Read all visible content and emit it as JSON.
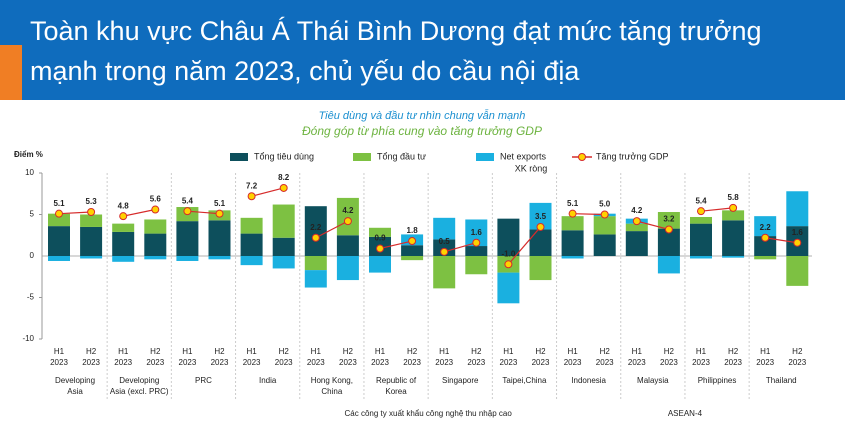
{
  "header": {
    "title": [
      "Toàn khu vực Châu Á Thái Bình Dương đạt mức tăng trưởng",
      "mạnh trong năm 2023, chủ yếu do cầu nội địa"
    ]
  },
  "chart_data": {
    "type": "bar",
    "stacked": true,
    "subtitle": "Tiêu dùng và đầu tư nhìn chung vẫn mạnh",
    "title": "Đóng góp từ phía cung vào tăng trưởng GDP",
    "y_label": "Điểm %",
    "annotation": "XK ròng",
    "ylim": [
      -10,
      10
    ],
    "yticks": [
      -10,
      -5,
      0,
      5,
      10
    ],
    "categories": [
      [
        "H1",
        "2023"
      ],
      [
        "H2",
        "2023"
      ],
      [
        "H1",
        "2023"
      ],
      [
        "H2",
        "2023"
      ],
      [
        "H1",
        "2023"
      ],
      [
        "H2",
        "2023"
      ],
      [
        "H1",
        "2023"
      ],
      [
        "H2",
        "2023"
      ],
      [
        "H1",
        "2023"
      ],
      [
        "H2",
        "2023"
      ],
      [
        "H1",
        "2023"
      ],
      [
        "H2",
        "2023"
      ],
      [
        "H1",
        "2023"
      ],
      [
        "H2",
        "2023"
      ],
      [
        "H1",
        "2023"
      ],
      [
        "H2",
        "2023"
      ],
      [
        "H1",
        "2023"
      ],
      [
        "H2",
        "2023"
      ],
      [
        "H1",
        "2023"
      ],
      [
        "H2",
        "2023"
      ],
      [
        "H1",
        "2023"
      ],
      [
        "H2",
        "2023"
      ],
      [
        "H1",
        "2023"
      ],
      [
        "H2",
        "2023"
      ]
    ],
    "groups": [
      [
        "Developing",
        "Asia"
      ],
      [
        "Developing",
        "Asia (excl. PRC)"
      ],
      [
        "PRC"
      ],
      [
        "India"
      ],
      [
        "Hong Kong,",
        "China"
      ],
      [
        "Republic of",
        "Korea"
      ],
      [
        "Singapore"
      ],
      [
        "Taipei,China"
      ],
      [
        "Indonesia"
      ],
      [
        "Malaysia"
      ],
      [
        "Philippines"
      ],
      [
        "Thailand"
      ]
    ],
    "super_groups": [
      "Các công ty xuất khẩu công nghệ thu nhập cao",
      "ASEAN-4"
    ],
    "series": [
      {
        "name": "Tổng tiêu dùng",
        "color": "#0d4f5c",
        "values": [
          3.6,
          3.5,
          2.9,
          2.7,
          4.2,
          4.3,
          2.7,
          2.2,
          6.0,
          2.5,
          2.3,
          1.3,
          2.0,
          1.2,
          4.5,
          3.2,
          3.1,
          2.6,
          3.0,
          3.3,
          3.9,
          4.3,
          2.4,
          3.6
        ]
      },
      {
        "name": "Tổng đầu tư",
        "color": "#7dc142",
        "values": [
          1.5,
          1.5,
          1.0,
          1.7,
          1.7,
          1.2,
          1.9,
          4.0,
          -1.7,
          4.5,
          1.1,
          -0.5,
          -3.9,
          -2.2,
          -2.0,
          -2.9,
          1.7,
          2.2,
          0.9,
          2.0,
          0.8,
          1.2,
          -0.4,
          -3.6
        ]
      },
      {
        "name": "Net exports",
        "color": "#1ab0e0",
        "values": [
          -0.6,
          -0.3,
          -0.7,
          -0.4,
          -0.6,
          -0.4,
          -1.1,
          -1.5,
          -2.1,
          -2.9,
          -2.0,
          1.3,
          2.6,
          3.2,
          -3.7,
          3.2,
          -0.3,
          0.3,
          0.6,
          -2.1,
          -0.3,
          -0.2,
          2.4,
          4.2
        ]
      },
      {
        "name": "Tăng trưởng GDP",
        "type": "line",
        "color": "#d62b2b",
        "marker_color": "#ffd200",
        "values": [
          5.1,
          5.3,
          4.8,
          5.6,
          5.4,
          5.1,
          7.2,
          8.2,
          2.2,
          4.2,
          0.9,
          1.8,
          0.5,
          1.6,
          -1.0,
          3.5,
          5.1,
          5.0,
          4.2,
          3.2,
          5.4,
          5.8,
          2.2,
          1.6
        ],
        "value_labels": [
          "5.1",
          "5.3",
          "4.8",
          "5.6",
          "5.4",
          "5.1",
          "7.2",
          "8.2",
          "2.2",
          "4.2",
          "0.9",
          "1.8",
          "0.5",
          "1.6",
          "-1.0",
          "3.5",
          "5.1",
          "5.0",
          "4.2",
          "3.2",
          "5.4",
          "5.8",
          "2.2",
          "1.6"
        ]
      }
    ]
  }
}
